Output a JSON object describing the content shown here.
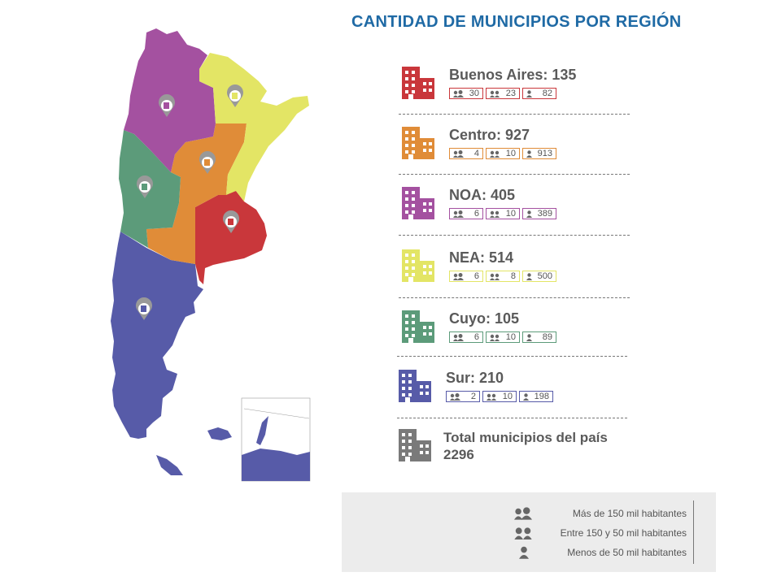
{
  "title": "CANTIDAD DE MUNICIPIOS POR REGIÓN",
  "colors": {
    "buenos_aires": "#c9373b",
    "centro": "#e08c38",
    "noa": "#a451a0",
    "nea": "#e3e565",
    "cuyo": "#5c9b7a",
    "sur": "#575ba8",
    "total": "#7a7a7a",
    "title": "#1f6aa5"
  },
  "regions": [
    {
      "label": "Buenos Aires: 135",
      "large": "30",
      "medium": "23",
      "small": "82"
    },
    {
      "label": "Centro: 927",
      "large": "4",
      "medium": "10",
      "small": "913"
    },
    {
      "label": "NOA: 405",
      "large": "6",
      "medium": "10",
      "small": "389"
    },
    {
      "label": "NEA: 514",
      "large": "6",
      "medium": "8",
      "small": "500"
    },
    {
      "label": "Cuyo: 105",
      "large": "6",
      "medium": "10",
      "small": "89"
    },
    {
      "label": "Sur: 210",
      "large": "2",
      "medium": "10",
      "small": "198"
    }
  ],
  "total": {
    "line1": "Total municipios del país",
    "line2": "2296"
  },
  "legend": {
    "large": "Más de 150 mil habitantes",
    "medium": "Entre 150 y 50 mil habitantes",
    "small": "Menos de 50 mil habitantes"
  },
  "icons": {
    "building": "building-icon",
    "large": "group-large-icon",
    "medium": "group-pair-icon",
    "small": "person-icon",
    "pin": "map-pin-icon"
  }
}
